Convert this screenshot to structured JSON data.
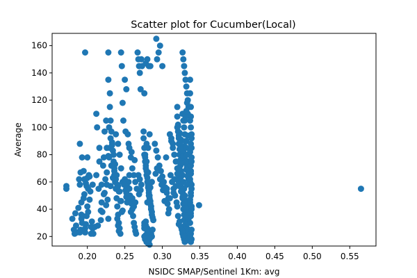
{
  "chart_data": {
    "type": "scatter",
    "title": "Scatter plot for Cucumber(Local)",
    "xlabel": "NSIDC SMAP/Sentinel 1Km: avg",
    "ylabel": "Average",
    "xlim": [
      0.153,
      0.585
    ],
    "ylim": [
      13,
      169
    ],
    "xticks": [
      0.2,
      0.25,
      0.3,
      0.35,
      0.4,
      0.45,
      0.5,
      0.55
    ],
    "xtick_labels": [
      "0.20",
      "0.25",
      "0.30",
      "0.35",
      "0.40",
      "0.45",
      "0.50",
      "0.55"
    ],
    "yticks": [
      20,
      40,
      60,
      80,
      100,
      120,
      140,
      160
    ],
    "ytick_labels": [
      "20",
      "40",
      "60",
      "80",
      "100",
      "120",
      "140",
      "160"
    ],
    "grid": false,
    "marker_color": "#1f77b4",
    "series": [
      {
        "name": "Cucumber(Local)",
        "x": [
          0.172,
          0.172,
          0.18,
          0.182,
          0.183,
          0.184,
          0.185,
          0.186,
          0.188,
          0.189,
          0.19,
          0.19,
          0.191,
          0.191,
          0.192,
          0.192,
          0.193,
          0.194,
          0.195,
          0.196,
          0.197,
          0.198,
          0.199,
          0.2,
          0.2,
          0.201,
          0.202,
          0.203,
          0.204,
          0.205,
          0.206,
          0.207,
          0.19,
          0.192,
          0.195,
          0.197,
          0.199,
          0.201,
          0.203,
          0.205,
          0.207,
          0.193,
          0.196,
          0.198,
          0.2,
          0.197,
          0.208,
          0.21,
          0.212,
          0.212,
          0.214,
          0.215,
          0.216,
          0.218,
          0.219,
          0.22,
          0.221,
          0.222,
          0.223,
          0.224,
          0.225,
          0.226,
          0.227,
          0.228,
          0.213,
          0.216,
          0.219,
          0.222,
          0.225,
          0.228,
          0.23,
          0.226,
          0.223,
          0.218,
          0.228,
          0.228,
          0.23,
          0.23,
          0.231,
          0.232,
          0.233,
          0.234,
          0.235,
          0.236,
          0.237,
          0.238,
          0.239,
          0.24,
          0.241,
          0.242,
          0.243,
          0.244,
          0.245,
          0.246,
          0.247,
          0.248,
          0.229,
          0.231,
          0.233,
          0.235,
          0.237,
          0.239,
          0.241,
          0.243,
          0.245,
          0.247,
          0.231,
          0.234,
          0.236,
          0.238,
          0.24,
          0.242,
          0.244,
          0.246,
          0.24,
          0.241,
          0.242,
          0.226,
          0.229,
          0.232,
          0.236,
          0.238,
          0.241,
          0.243,
          0.245,
          0.247,
          0.249,
          0.25,
          0.251,
          0.252,
          0.253,
          0.254,
          0.255,
          0.256,
          0.257,
          0.258,
          0.259,
          0.26,
          0.261,
          0.262,
          0.263,
          0.264,
          0.265,
          0.25,
          0.252,
          0.254,
          0.256,
          0.258,
          0.26,
          0.262,
          0.264,
          0.266,
          0.251,
          0.255,
          0.259,
          0.263,
          0.252,
          0.256,
          0.26,
          0.264,
          0.262,
          0.258,
          0.254,
          0.25,
          0.267,
          0.268,
          0.269,
          0.27,
          0.271,
          0.272,
          0.273,
          0.268,
          0.27,
          0.272,
          0.271,
          0.269,
          0.275,
          0.275,
          0.276,
          0.276,
          0.277,
          0.277,
          0.278,
          0.278,
          0.279,
          0.279,
          0.28,
          0.28,
          0.281,
          0.281,
          0.282,
          0.282,
          0.283,
          0.283,
          0.284,
          0.284,
          0.285,
          0.285,
          0.286,
          0.286,
          0.287,
          0.288,
          0.276,
          0.278,
          0.28,
          0.282,
          0.284,
          0.286,
          0.277,
          0.279,
          0.281,
          0.283,
          0.285,
          0.287,
          0.276,
          0.278,
          0.28,
          0.282,
          0.284,
          0.286,
          0.279,
          0.281,
          0.283,
          0.276,
          0.278,
          0.28,
          0.282,
          0.284,
          0.277,
          0.279,
          0.281,
          0.283,
          0.276,
          0.277,
          0.279,
          0.281,
          0.282,
          0.284,
          0.278,
          0.28,
          0.276,
          0.278,
          0.29,
          0.292,
          0.294,
          0.296,
          0.298,
          0.3,
          0.302,
          0.304,
          0.306,
          0.308,
          0.291,
          0.293,
          0.297,
          0.299,
          0.301,
          0.303,
          0.307,
          0.309,
          0.292,
          0.295,
          0.3,
          0.293,
          0.297,
          0.305,
          0.306,
          0.308,
          0.31,
          0.312,
          0.314,
          0.316,
          0.318,
          0.32,
          0.311,
          0.313,
          0.315,
          0.317,
          0.319,
          0.312,
          0.314,
          0.316,
          0.318,
          0.31,
          0.32,
          0.315,
          0.32,
          0.32,
          0.321,
          0.321,
          0.322,
          0.322,
          0.323,
          0.323,
          0.324,
          0.324,
          0.325,
          0.325,
          0.326,
          0.326,
          0.327,
          0.327,
          0.328,
          0.328,
          0.329,
          0.329,
          0.33,
          0.33,
          0.331,
          0.331,
          0.332,
          0.332,
          0.333,
          0.333,
          0.334,
          0.334,
          0.335,
          0.335,
          0.321,
          0.323,
          0.325,
          0.327,
          0.329,
          0.331,
          0.333,
          0.335,
          0.322,
          0.324,
          0.326,
          0.328,
          0.33,
          0.332,
          0.334,
          0.321,
          0.323,
          0.325,
          0.327,
          0.329,
          0.331,
          0.333,
          0.335,
          0.32,
          0.322,
          0.324,
          0.326,
          0.328,
          0.33,
          0.332,
          0.334,
          0.32,
          0.322,
          0.324,
          0.326,
          0.328,
          0.33,
          0.332,
          0.334,
          0.321,
          0.323,
          0.325,
          0.327,
          0.329,
          0.331,
          0.333,
          0.335,
          0.322,
          0.326,
          0.33,
          0.334,
          0.327,
          0.328,
          0.329,
          0.33,
          0.331,
          0.332,
          0.333,
          0.334,
          0.335,
          0.327,
          0.328,
          0.329,
          0.33,
          0.331,
          0.332,
          0.333,
          0.334,
          0.335,
          0.327,
          0.328,
          0.329,
          0.33,
          0.331,
          0.332,
          0.333,
          0.334,
          0.335,
          0.327,
          0.328,
          0.329,
          0.33,
          0.331,
          0.332,
          0.333,
          0.337,
          0.337,
          0.338,
          0.338,
          0.338,
          0.339,
          0.339,
          0.339,
          0.338,
          0.338,
          0.337,
          0.339,
          0.338,
          0.337,
          0.339,
          0.338,
          0.337,
          0.339,
          0.338,
          0.337,
          0.339,
          0.338,
          0.337,
          0.339,
          0.338,
          0.337,
          0.339,
          0.338,
          0.337,
          0.339,
          0.338,
          0.337,
          0.339,
          0.338,
          0.349,
          0.565
        ],
        "y": [
          57,
          55,
          33,
          25,
          22,
          37,
          28,
          23,
          41,
          62,
          88,
          23,
          25,
          67,
          33,
          45,
          78,
          35,
          68,
          51,
          23,
          29,
          57,
          42,
          63,
          38,
          65,
          47,
          53,
          22,
          31,
          26,
          58,
          36,
          48,
          26,
          35,
          55,
          64,
          27,
          58,
          30,
          62,
          59,
          78,
          155,
          22,
          27,
          110,
          65,
          28,
          55,
          85,
          32,
          45,
          38,
          72,
          78,
          97,
          62,
          43,
          58,
          47,
          33,
          100,
          75,
          58,
          51,
          105,
          79,
          85,
          67,
          52,
          39,
          155,
          135,
          125,
          115,
          105,
          97,
          89,
          83,
          75,
          68,
          60,
          55,
          48,
          42,
          36,
          30,
          26,
          22,
          155,
          145,
          118,
          105,
          100,
          92,
          87,
          80,
          73,
          65,
          57,
          53,
          46,
          39,
          57,
          63,
          70,
          62,
          58,
          53,
          46,
          38,
          33,
          28,
          24,
          85,
          78,
          72,
          65,
          95,
          88,
          80,
          70,
          60,
          58,
          62,
          54,
          49,
          45,
          56,
          60,
          65,
          50,
          47,
          44,
          40,
          35,
          30,
          27,
          24,
          22,
          135,
          128,
          95,
          85,
          78,
          70,
          65,
          60,
          55,
          97,
          88,
          82,
          76,
          52,
          55,
          48,
          45,
          42,
          38,
          50,
          58,
          155,
          150,
          145,
          140,
          128,
          150,
          145,
          65,
          62,
          58,
          54,
          51,
          97,
          92,
          85,
          80,
          78,
          75,
          72,
          70,
          68,
          65,
          63,
          60,
          58,
          56,
          54,
          52,
          50,
          48,
          46,
          44,
          42,
          40,
          38,
          36,
          34,
          32,
          30,
          28,
          26,
          24,
          22,
          20,
          18,
          16,
          15,
          14,
          22,
          25,
          28,
          31,
          45,
          50,
          56,
          60,
          75,
          85,
          95,
          125,
          147,
          150,
          145,
          145,
          80,
          88,
          67,
          57,
          20,
          18,
          16,
          15,
          17,
          19,
          21,
          23,
          26,
          28,
          88,
          83,
          78,
          72,
          68,
          64,
          60,
          56,
          52,
          48,
          66,
          70,
          62,
          58,
          54,
          46,
          44,
          40,
          165,
          155,
          145,
          150,
          160,
          78,
          55,
          37,
          95,
          90,
          85,
          80,
          75,
          70,
          65,
          60,
          55,
          50,
          45,
          92,
          88,
          62,
          57,
          48,
          42,
          52,
          115,
          108,
          102,
          97,
          92,
          88,
          84,
          80,
          76,
          72,
          68,
          64,
          60,
          56,
          52,
          48,
          44,
          40,
          36,
          32,
          28,
          24,
          22,
          20,
          18,
          17,
          26,
          30,
          34,
          38,
          42,
          46,
          101,
          96,
          91,
          86,
          81,
          76,
          71,
          66,
          63,
          59,
          55,
          51,
          47,
          43,
          39,
          35,
          31,
          27,
          23,
          21,
          19,
          58,
          62,
          66,
          70,
          74,
          78,
          82,
          86,
          90,
          94,
          100,
          94,
          89,
          84,
          79,
          74,
          69,
          64,
          61,
          57,
          53,
          49,
          45,
          41,
          37,
          33,
          29,
          25,
          105,
          110,
          155,
          150,
          145,
          140,
          135,
          130,
          125,
          120,
          115,
          110,
          105,
          100,
          95,
          90,
          85,
          80,
          75,
          70,
          65,
          60,
          55,
          50,
          45,
          40,
          35,
          30,
          25,
          22,
          20,
          18,
          16,
          108,
          112,
          118,
          135,
          125,
          115,
          108,
          100,
          92,
          85,
          78,
          72,
          66,
          60,
          55,
          50,
          45,
          40,
          35,
          30,
          25,
          22,
          20,
          18,
          16,
          105,
          95,
          88,
          82,
          75,
          68,
          62,
          58,
          52,
          47,
          42,
          37,
          43,
          55
        ]
      }
    ]
  }
}
